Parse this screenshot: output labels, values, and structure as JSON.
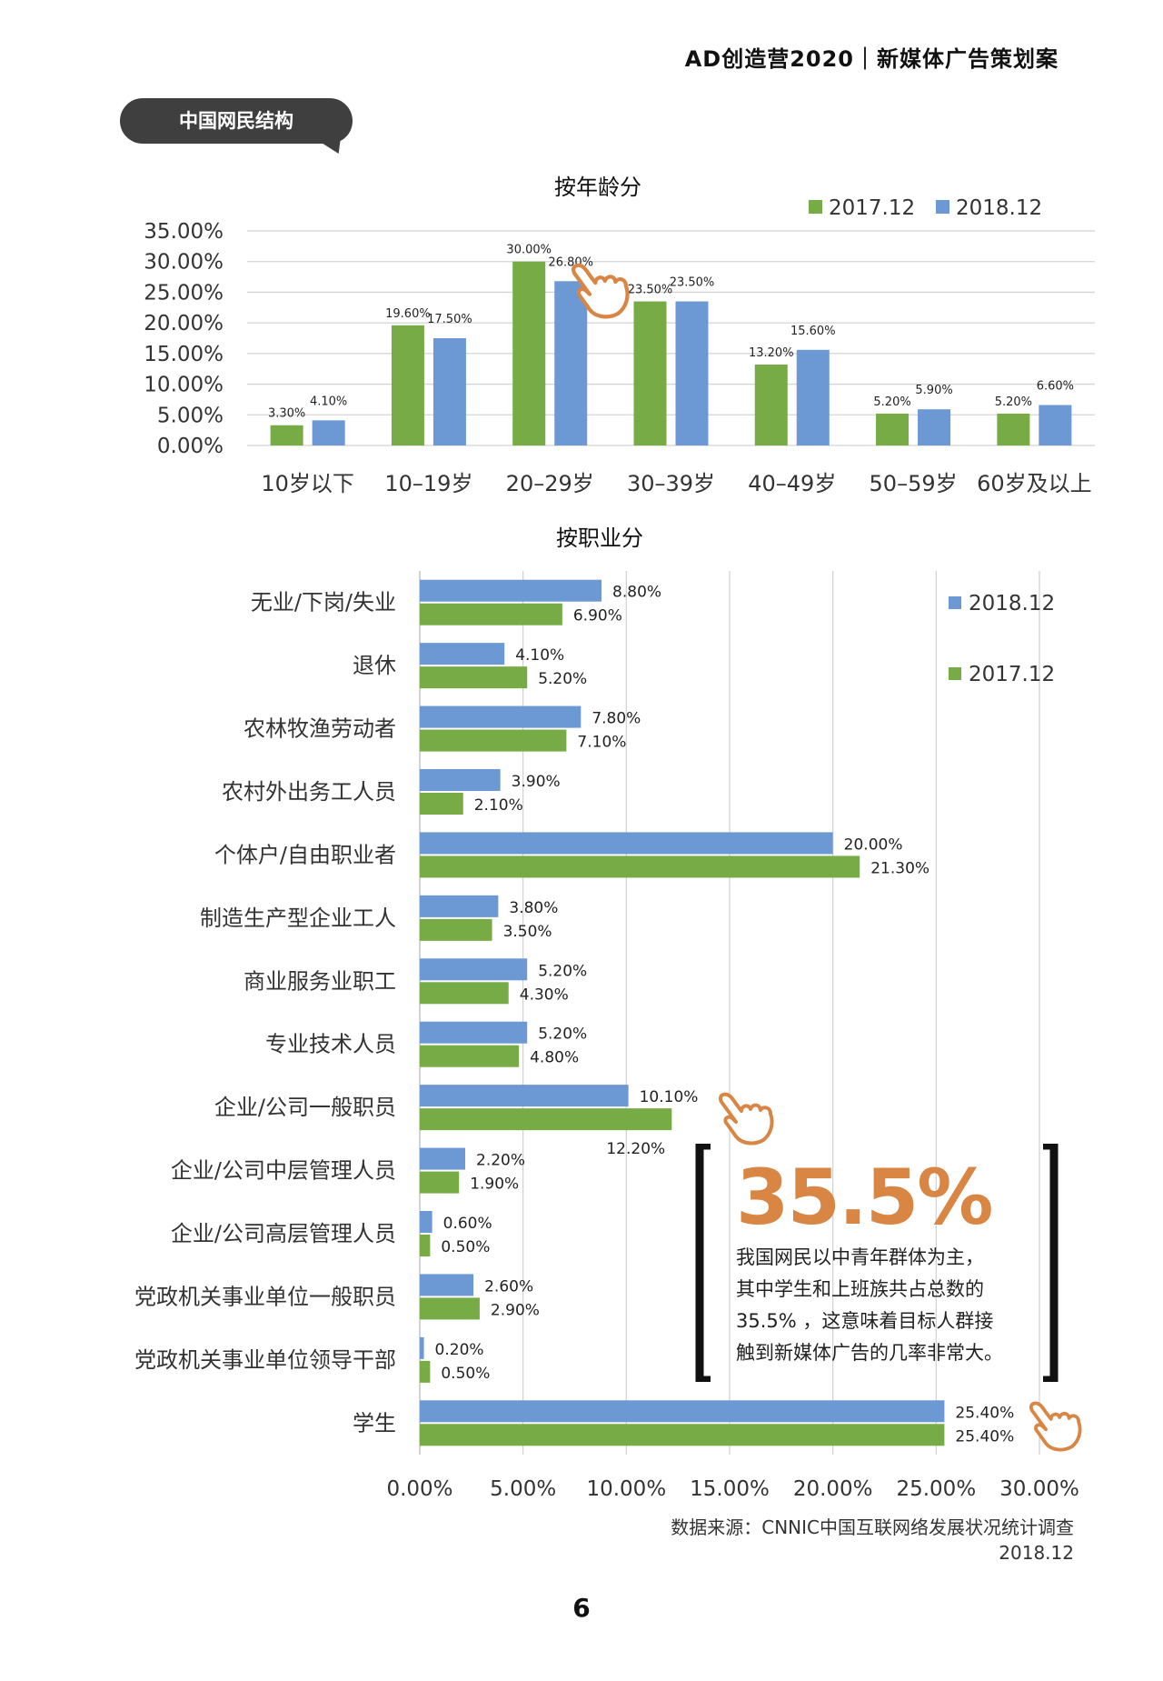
{
  "header": {
    "title": "AD创造营2020｜新媒体广告策划案"
  },
  "tag": {
    "label": "中国网民结构"
  },
  "colors": {
    "green": "#77ab45",
    "blue": "#6c98d4",
    "orange": "#d98544",
    "tag_bg": "#3f3f3f"
  },
  "icons": [
    "hand-pointer-icon"
  ],
  "chart_data": [
    {
      "type": "bar",
      "title": "按年龄分",
      "categories": [
        "10岁以下",
        "10–19岁",
        "20–29岁",
        "30–39岁",
        "40–49岁",
        "50–59岁",
        "60岁及以上"
      ],
      "series": [
        {
          "name": "2017.12",
          "color": "#77ab45",
          "values": [
            3.3,
            19.6,
            30.0,
            23.5,
            13.2,
            5.2,
            5.2
          ],
          "labels": [
            "3.30%",
            "19.60%",
            "30.00%",
            "23.50%",
            "13.20%",
            "5.20%",
            "5.20%"
          ]
        },
        {
          "name": "2018.12",
          "color": "#6c98d4",
          "values": [
            4.1,
            17.5,
            26.8,
            23.5,
            15.6,
            5.9,
            6.6
          ],
          "labels": [
            "4.10%",
            "17.50%",
            "26.80%",
            "23.50%",
            "15.60%",
            "5.90%",
            "6.60%"
          ]
        }
      ],
      "ylim": [
        0,
        35
      ],
      "yticks": [
        "0.00%",
        "5.00%",
        "10.00%",
        "15.00%",
        "20.00%",
        "25.00%",
        "30.00%",
        "35.00%"
      ],
      "legend_position": "top-right",
      "grid": true
    },
    {
      "type": "bar",
      "orientation": "horizontal",
      "title": "按职业分",
      "categories": [
        "无业/下岗/失业",
        "退休",
        "农林牧渔劳动者",
        "农村外出务工人员",
        "个体户/自由职业者",
        "制造生产型企业工人",
        "商业服务业职工",
        "专业技术人员",
        "企业/公司一般职员",
        "企业/公司中层管理人员",
        "企业/公司高层管理人员",
        "党政机关事业单位一般职员",
        "党政机关事业单位领导干部",
        "学生"
      ],
      "series": [
        {
          "name": "2018.12",
          "color": "#6c98d4",
          "values": [
            8.8,
            4.1,
            7.8,
            3.9,
            20.0,
            3.8,
            5.2,
            5.2,
            10.1,
            2.2,
            0.6,
            2.6,
            0.2,
            25.4
          ],
          "labels": [
            "8.80%",
            "4.10%",
            "7.80%",
            "3.90%",
            "20.00%",
            "3.80%",
            "5.20%",
            "5.20%",
            "10.10%",
            "2.20%",
            "0.60%",
            "2.60%",
            "0.20%",
            "25.40%"
          ]
        },
        {
          "name": "2017.12",
          "color": "#77ab45",
          "values": [
            6.9,
            5.2,
            7.1,
            2.1,
            21.3,
            3.5,
            4.3,
            4.8,
            12.2,
            1.9,
            0.5,
            2.9,
            0.5,
            25.4
          ],
          "labels": [
            "6.90%",
            "5.20%",
            "7.10%",
            "2.10%",
            "21.30%",
            "3.50%",
            "4.30%",
            "4.80%",
            "12.20%",
            "1.90%",
            "0.50%",
            "2.90%",
            "0.50%",
            "25.40%"
          ]
        }
      ],
      "xlim": [
        0,
        30
      ],
      "xticks": [
        "0.00%",
        "5.00%",
        "10.00%",
        "15.00%",
        "20.00%",
        "25.00%",
        "30.00%"
      ],
      "legend_position": "top-right",
      "grid": true
    }
  ],
  "callout": {
    "big_number": "35.5%",
    "lines": [
      "我国网民以中青年群体为主，",
      "其中学生和上班族共占总数的",
      "35.5% ，这意味着目标人群接",
      "触到新媒体广告的几率非常大。"
    ]
  },
  "source": {
    "line1": "数据来源：CNNIC中国互联网络发展状况统计调查",
    "line2": "2018.12"
  },
  "page_number": "6"
}
